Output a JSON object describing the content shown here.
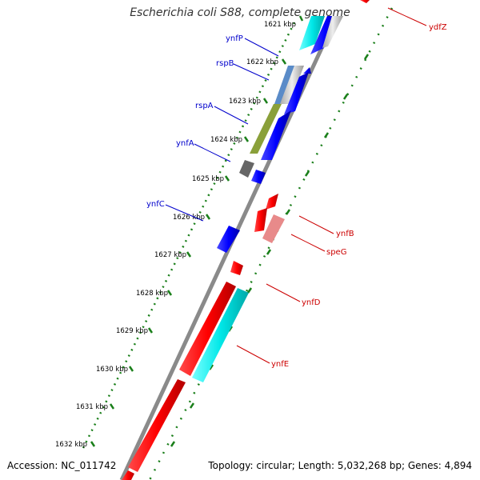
{
  "title": "Escherichia coli S88, complete genome",
  "footer": {
    "accession": "Accession: NC_011742",
    "topology": "Topology: circular; Length: 5,032,268 bp; Genes: 4,894"
  },
  "colors": {
    "forward_label": "#0000cc",
    "reverse_label": "#cc0000",
    "backbone": "#8a8a8a",
    "tick": "#1a7f1a"
  },
  "scale_labels": [
    "1621 kbp",
    "1622 kbp",
    "1623 kbp",
    "1624 kbp",
    "1625 kbp",
    "1626 kbp",
    "1627 kbp",
    "1628 kbp",
    "1629 kbp",
    "1630 kbp",
    "1631 kbp",
    "1632 kbp"
  ],
  "genes": {
    "forward": [
      "ynfP",
      "rspB",
      "rspA",
      "ynfA",
      "ynfC"
    ],
    "reverse": [
      "ydfZ",
      "ynfB",
      "speG",
      "ynfD",
      "ynfE"
    ]
  }
}
